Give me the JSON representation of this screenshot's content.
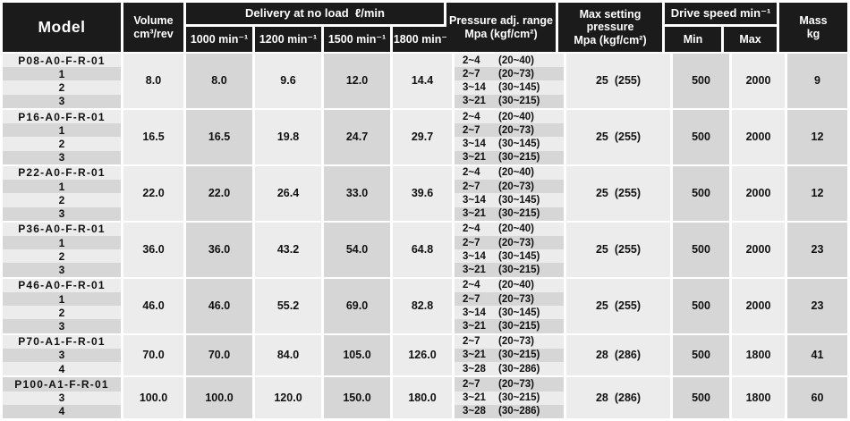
{
  "colors": {
    "header_bg": "#1b1b1b",
    "header_text": "#ffffff",
    "row_light": "#ececec",
    "row_dark": "#d6d6d6",
    "body_text": "#111111"
  },
  "header": {
    "model": "Model",
    "volume_line1": "Volume",
    "volume_line2": "cm³/rev",
    "delivery_group": "Delivery at no load  ℓ/min",
    "delivery_speeds": [
      "1000 min⁻¹",
      "1200 min⁻¹",
      "1500 min⁻¹",
      "1800 min⁻¹"
    ],
    "pressure_line1": "Pressure adj. range",
    "pressure_line2": "Mpa (kgf/cm²)",
    "max_pressure_line1": "Max setting",
    "max_pressure_line2": "pressure",
    "max_pressure_line3": "Mpa (kgf/cm²)",
    "drive_speed": "Drive speed min⁻¹",
    "drive_min": "Min",
    "drive_max": "Max",
    "mass_line1": "Mass",
    "mass_line2": "kg"
  },
  "rows": [
    {
      "model": "P08-A0-F-R-01",
      "variants": [
        "1",
        "2",
        "3"
      ],
      "volume": "8.0",
      "delivery": [
        "8.0",
        "9.6",
        "12.0",
        "14.4"
      ],
      "pressure_ranges": [
        {
          "mpa": "2~4",
          "kgf": "(20~40)"
        },
        {
          "mpa": "2~7",
          "kgf": "(20~73)"
        },
        {
          "mpa": "3~14",
          "kgf": "(30~145)"
        },
        {
          "mpa": "3~21",
          "kgf": "(30~215)"
        }
      ],
      "max_pressure": "25  (255)",
      "drive_min": "500",
      "drive_max": "2000",
      "mass": "9"
    },
    {
      "model": "P16-A0-F-R-01",
      "variants": [
        "1",
        "2",
        "3"
      ],
      "volume": "16.5",
      "delivery": [
        "16.5",
        "19.8",
        "24.7",
        "29.7"
      ],
      "pressure_ranges": [
        {
          "mpa": "2~4",
          "kgf": "(20~40)"
        },
        {
          "mpa": "2~7",
          "kgf": "(20~73)"
        },
        {
          "mpa": "3~14",
          "kgf": "(30~145)"
        },
        {
          "mpa": "3~21",
          "kgf": "(30~215)"
        }
      ],
      "max_pressure": "25  (255)",
      "drive_min": "500",
      "drive_max": "2000",
      "mass": "12"
    },
    {
      "model": "P22-A0-F-R-01",
      "variants": [
        "1",
        "2",
        "3"
      ],
      "volume": "22.0",
      "delivery": [
        "22.0",
        "26.4",
        "33.0",
        "39.6"
      ],
      "pressure_ranges": [
        {
          "mpa": "2~4",
          "kgf": "(20~40)"
        },
        {
          "mpa": "2~7",
          "kgf": "(20~73)"
        },
        {
          "mpa": "3~14",
          "kgf": "(30~145)"
        },
        {
          "mpa": "3~21",
          "kgf": "(30~215)"
        }
      ],
      "max_pressure": "25  (255)",
      "drive_min": "500",
      "drive_max": "2000",
      "mass": "12"
    },
    {
      "model": "P36-A0-F-R-01",
      "variants": [
        "1",
        "2",
        "3"
      ],
      "volume": "36.0",
      "delivery": [
        "36.0",
        "43.2",
        "54.0",
        "64.8"
      ],
      "pressure_ranges": [
        {
          "mpa": "2~4",
          "kgf": "(20~40)"
        },
        {
          "mpa": "2~7",
          "kgf": "(20~73)"
        },
        {
          "mpa": "3~14",
          "kgf": "(30~145)"
        },
        {
          "mpa": "3~21",
          "kgf": "(30~215)"
        }
      ],
      "max_pressure": "25  (255)",
      "drive_min": "500",
      "drive_max": "2000",
      "mass": "23"
    },
    {
      "model": "P46-A0-F-R-01",
      "variants": [
        "1",
        "2",
        "3"
      ],
      "volume": "46.0",
      "delivery": [
        "46.0",
        "55.2",
        "69.0",
        "82.8"
      ],
      "pressure_ranges": [
        {
          "mpa": "2~4",
          "kgf": "(20~40)"
        },
        {
          "mpa": "2~7",
          "kgf": "(20~73)"
        },
        {
          "mpa": "3~14",
          "kgf": "(30~145)"
        },
        {
          "mpa": "3~21",
          "kgf": "(30~215)"
        }
      ],
      "max_pressure": "25  (255)",
      "drive_min": "500",
      "drive_max": "2000",
      "mass": "23"
    },
    {
      "model": "P70-A1-F-R-01",
      "variants": [
        "3",
        "4"
      ],
      "volume": "70.0",
      "delivery": [
        "70.0",
        "84.0",
        "105.0",
        "126.0"
      ],
      "pressure_ranges": [
        {
          "mpa": "2~7",
          "kgf": "(20~73)"
        },
        {
          "mpa": "3~21",
          "kgf": "(30~215)"
        },
        {
          "mpa": "3~28",
          "kgf": "(30~286)"
        }
      ],
      "max_pressure": "28  (286)",
      "drive_min": "500",
      "drive_max": "1800",
      "mass": "41"
    },
    {
      "model": "P100-A1-F-R-01",
      "variants": [
        "3",
        "4"
      ],
      "volume": "100.0",
      "delivery": [
        "100.0",
        "120.0",
        "150.0",
        "180.0"
      ],
      "pressure_ranges": [
        {
          "mpa": "2~7",
          "kgf": "(20~73)"
        },
        {
          "mpa": "3~21",
          "kgf": "(30~215)"
        },
        {
          "mpa": "3~28",
          "kgf": "(30~286)"
        }
      ],
      "max_pressure": "28  (286)",
      "drive_min": "500",
      "drive_max": "1800",
      "mass": "60"
    }
  ]
}
